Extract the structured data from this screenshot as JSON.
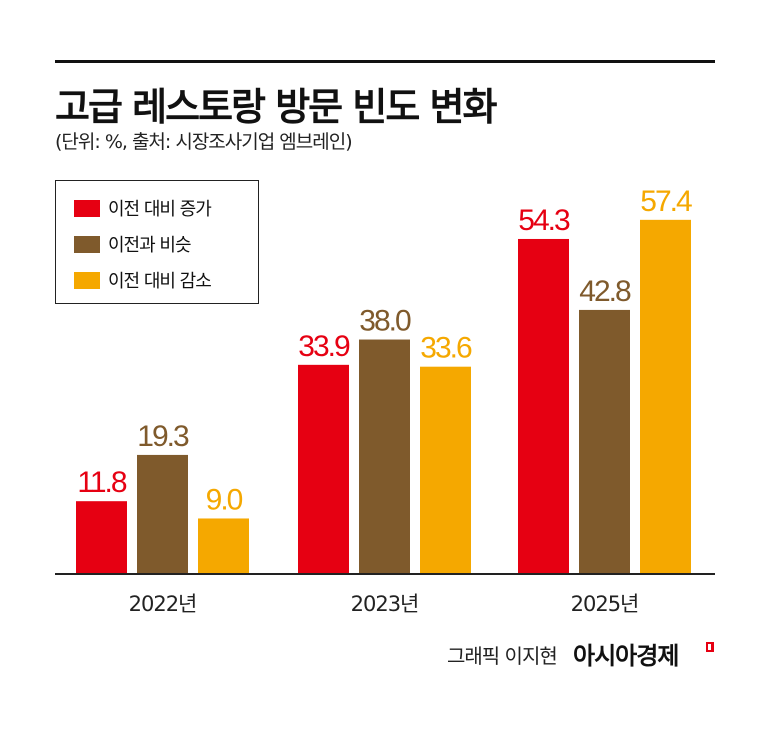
{
  "title": "고급 레스토랑 방문 빈도 변화",
  "subtitle": "(단위: %, 출처: 시장조사기업 엠브레인)",
  "credit": "그래픽 이지현",
  "brand": "아시아경제",
  "chart_data": {
    "type": "bar",
    "title": "고급 레스토랑 방문 빈도 변화",
    "xlabel": "",
    "ylabel": "%",
    "ylim": [
      0,
      60
    ],
    "grid": false,
    "legend_position": "top-left",
    "categories": [
      "2022년",
      "2023년",
      "2025년"
    ],
    "series": [
      {
        "name": "이전 대비 증가",
        "color": "#e60012",
        "values": [
          11.8,
          33.9,
          54.3
        ]
      },
      {
        "name": "이전과 비슷",
        "color": "#7f5a2c",
        "values": [
          19.3,
          38.0,
          42.8
        ]
      },
      {
        "name": "이전 대비 감소",
        "color": "#f5a800",
        "values": [
          9.0,
          33.6,
          57.4
        ]
      }
    ]
  }
}
